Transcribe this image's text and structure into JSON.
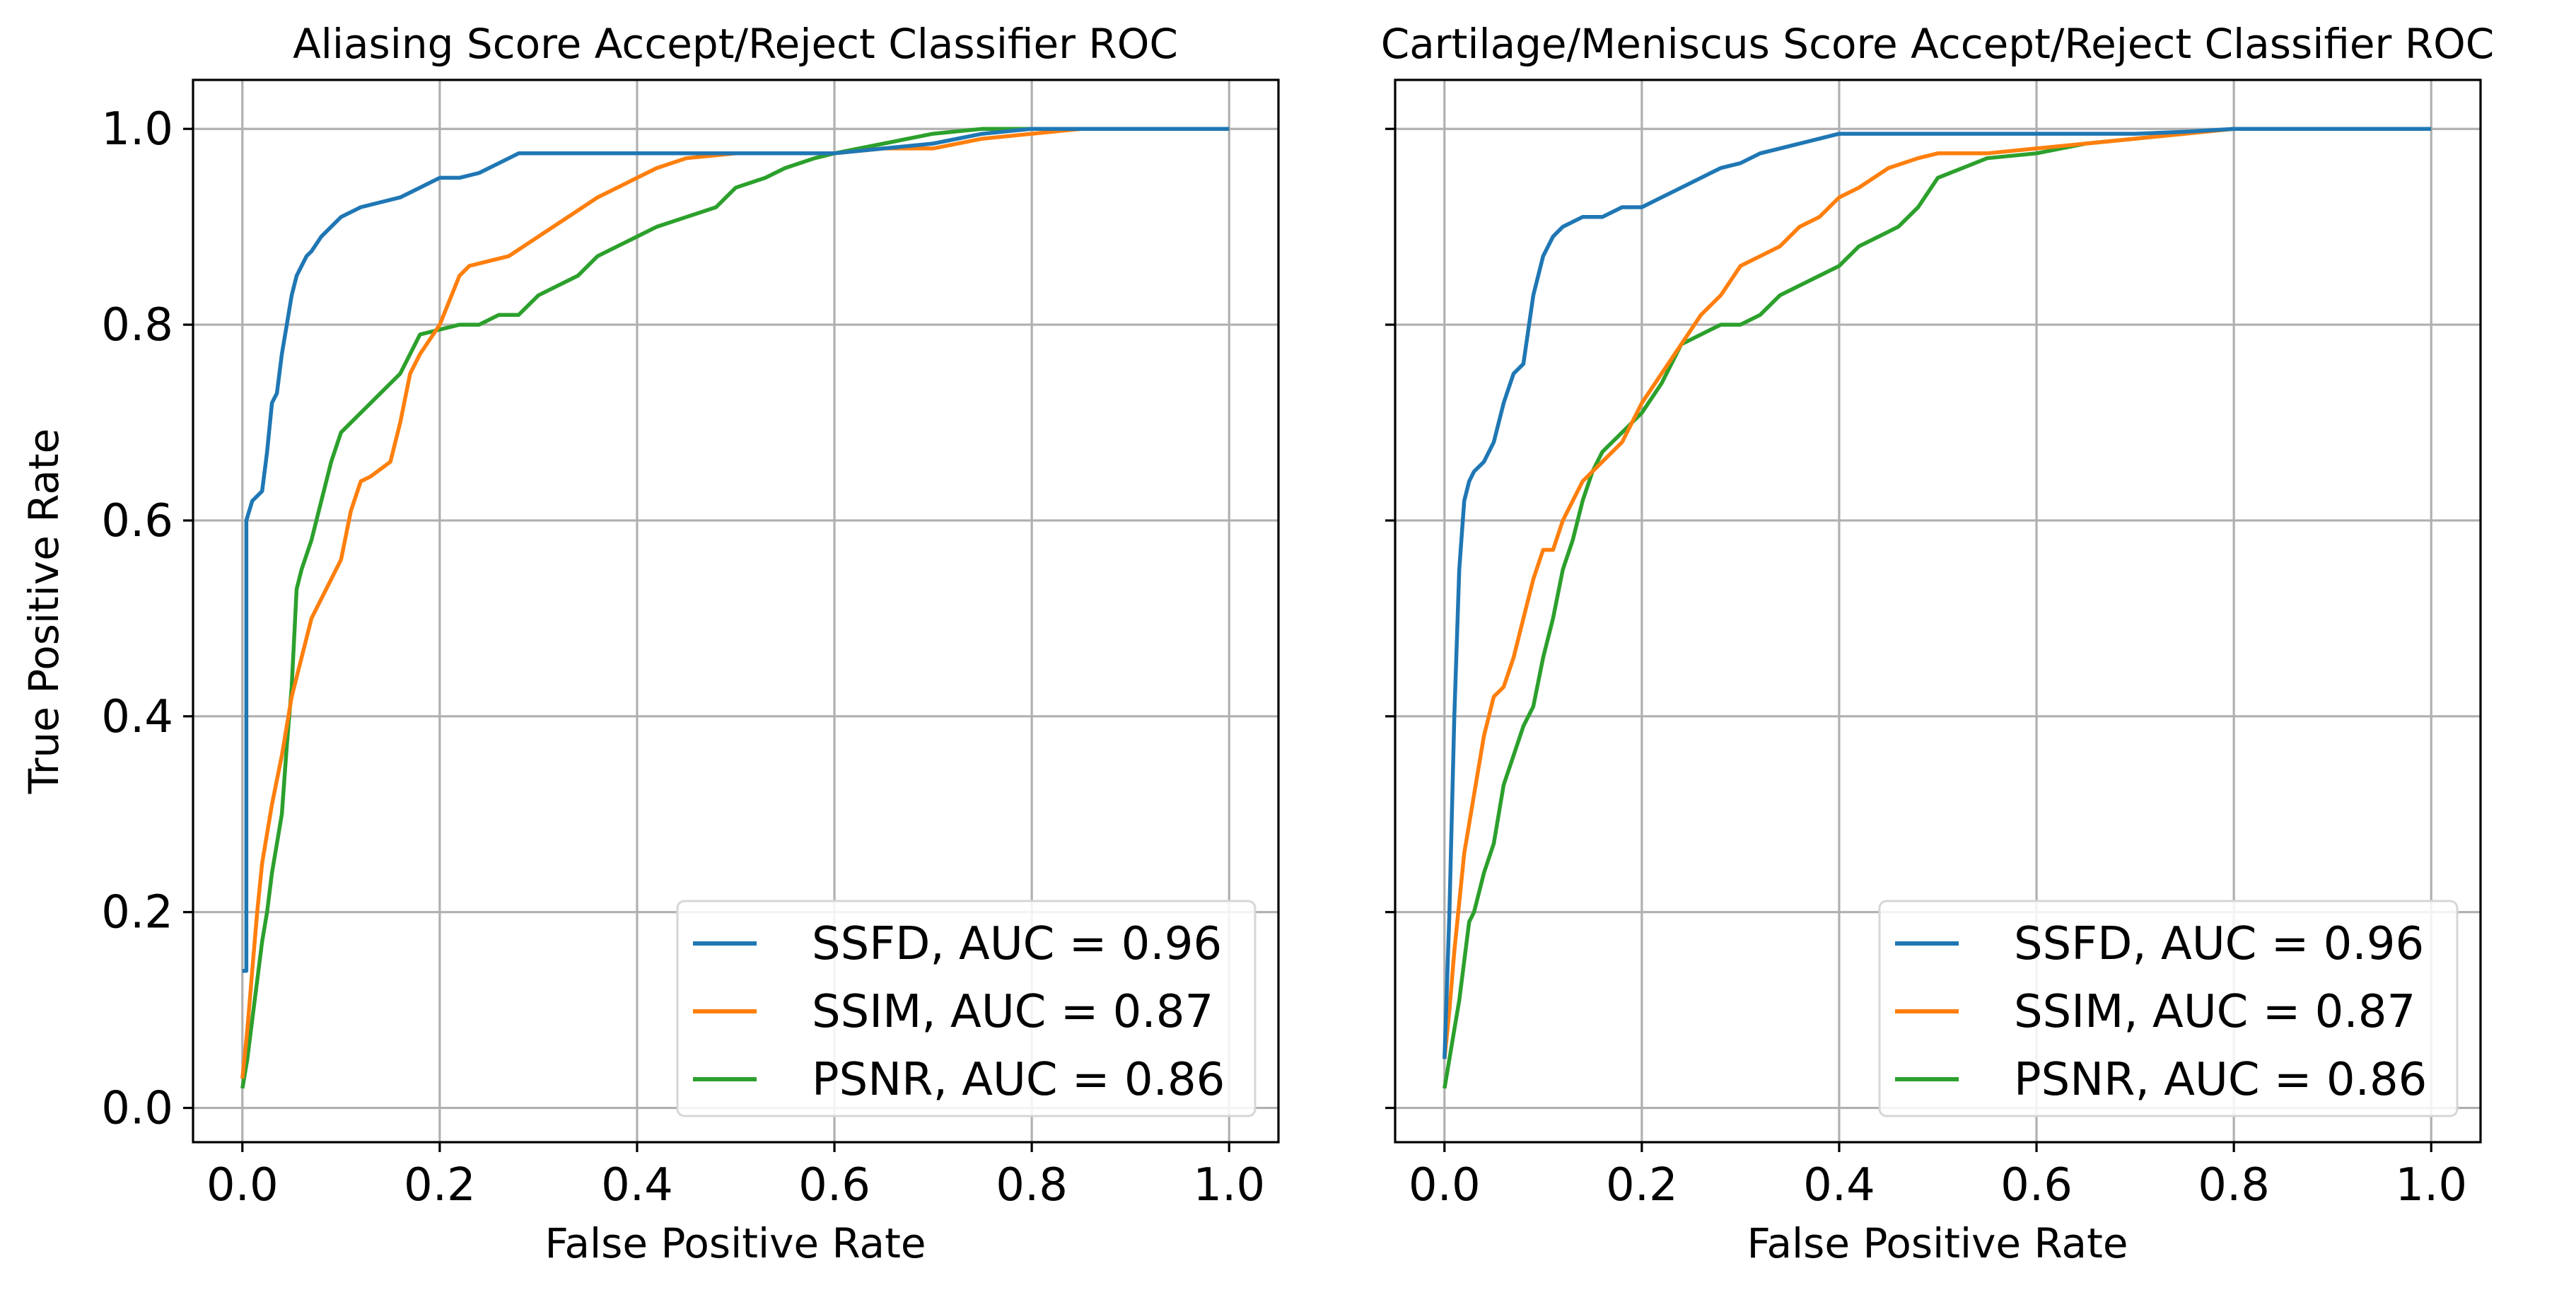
{
  "chart_data": [
    {
      "type": "line",
      "title": "Aliasing Score Accept/Reject Classifier ROC",
      "xlabel": "False Positive Rate",
      "ylabel": "True Positive Rate",
      "xlim": [
        -0.05,
        1.05
      ],
      "ylim": [
        -0.035,
        1.05
      ],
      "xticks": [
        "0.0",
        "0.2",
        "0.4",
        "0.6",
        "0.8",
        "1.0"
      ],
      "yticks": [
        "0.0",
        "0.2",
        "0.4",
        "0.6",
        "0.8",
        "1.0"
      ],
      "grid": true,
      "legend_position": "lower-right",
      "series": [
        {
          "name": "SSFD, AUC = 0.96",
          "color": "#1f77b4",
          "x": [
            0.0,
            0.0,
            0.004,
            0.004,
            0.01,
            0.02,
            0.025,
            0.03,
            0.035,
            0.04,
            0.045,
            0.05,
            0.055,
            0.06,
            0.065,
            0.07,
            0.08,
            0.09,
            0.1,
            0.12,
            0.14,
            0.16,
            0.18,
            0.2,
            0.22,
            0.24,
            0.26,
            0.28,
            0.3,
            0.35,
            0.4,
            0.5,
            0.6,
            0.65,
            0.7,
            0.75,
            0.8,
            1.0
          ],
          "y": [
            0.14,
            0.14,
            0.14,
            0.6,
            0.62,
            0.63,
            0.67,
            0.72,
            0.73,
            0.77,
            0.8,
            0.83,
            0.85,
            0.86,
            0.87,
            0.875,
            0.89,
            0.9,
            0.91,
            0.92,
            0.925,
            0.93,
            0.94,
            0.95,
            0.95,
            0.955,
            0.965,
            0.975,
            0.975,
            0.975,
            0.975,
            0.975,
            0.975,
            0.98,
            0.985,
            0.995,
            1.0,
            1.0
          ]
        },
        {
          "name": "SSIM, AUC = 0.87",
          "color": "#ff7f0e",
          "x": [
            0.0,
            0.005,
            0.01,
            0.015,
            0.02,
            0.03,
            0.04,
            0.05,
            0.06,
            0.07,
            0.08,
            0.09,
            0.1,
            0.11,
            0.12,
            0.13,
            0.15,
            0.16,
            0.17,
            0.18,
            0.2,
            0.22,
            0.23,
            0.25,
            0.27,
            0.3,
            0.33,
            0.36,
            0.38,
            0.4,
            0.42,
            0.45,
            0.5,
            0.55,
            0.6,
            0.65,
            0.7,
            0.75,
            0.8,
            0.85
          ],
          "y": [
            0.03,
            0.08,
            0.14,
            0.2,
            0.25,
            0.31,
            0.36,
            0.42,
            0.46,
            0.5,
            0.52,
            0.54,
            0.56,
            0.61,
            0.64,
            0.645,
            0.66,
            0.7,
            0.75,
            0.77,
            0.8,
            0.85,
            0.86,
            0.865,
            0.87,
            0.89,
            0.91,
            0.93,
            0.94,
            0.95,
            0.96,
            0.97,
            0.975,
            0.975,
            0.975,
            0.98,
            0.98,
            0.99,
            0.995,
            1.0
          ]
        },
        {
          "name": "PSNR, AUC = 0.86",
          "color": "#2ca02c",
          "x": [
            0.0,
            0.005,
            0.01,
            0.015,
            0.02,
            0.025,
            0.03,
            0.035,
            0.04,
            0.045,
            0.05,
            0.055,
            0.06,
            0.07,
            0.08,
            0.09,
            0.1,
            0.11,
            0.12,
            0.13,
            0.14,
            0.15,
            0.16,
            0.18,
            0.2,
            0.22,
            0.24,
            0.26,
            0.28,
            0.3,
            0.32,
            0.34,
            0.36,
            0.38,
            0.4,
            0.42,
            0.45,
            0.48,
            0.5,
            0.53,
            0.55,
            0.58,
            0.6,
            0.65,
            0.7,
            0.75,
            0.8,
            1.0
          ],
          "y": [
            0.02,
            0.05,
            0.09,
            0.13,
            0.17,
            0.2,
            0.24,
            0.27,
            0.3,
            0.37,
            0.43,
            0.53,
            0.55,
            0.58,
            0.62,
            0.66,
            0.69,
            0.7,
            0.71,
            0.72,
            0.73,
            0.74,
            0.75,
            0.79,
            0.795,
            0.8,
            0.8,
            0.81,
            0.81,
            0.83,
            0.84,
            0.85,
            0.87,
            0.88,
            0.89,
            0.9,
            0.91,
            0.92,
            0.94,
            0.95,
            0.96,
            0.97,
            0.975,
            0.985,
            0.995,
            1.0,
            1.0,
            1.0
          ]
        }
      ]
    },
    {
      "type": "line",
      "title": "Cartilage/Meniscus Score Accept/Reject Classifier ROC",
      "xlabel": "False Positive Rate",
      "ylabel": "",
      "xlim": [
        -0.05,
        1.05
      ],
      "ylim": [
        -0.035,
        1.05
      ],
      "xticks": [
        "0.0",
        "0.2",
        "0.4",
        "0.6",
        "0.8",
        "1.0"
      ],
      "yticks": [
        "0.0",
        "0.2",
        "0.4",
        "0.6",
        "0.8",
        "1.0"
      ],
      "grid": true,
      "legend_position": "lower-right",
      "series": [
        {
          "name": "SSFD, AUC = 0.96",
          "color": "#1f77b4",
          "x": [
            0.0,
            0.005,
            0.01,
            0.015,
            0.02,
            0.025,
            0.03,
            0.04,
            0.05,
            0.06,
            0.07,
            0.08,
            0.09,
            0.1,
            0.11,
            0.12,
            0.14,
            0.16,
            0.18,
            0.2,
            0.22,
            0.24,
            0.26,
            0.28,
            0.3,
            0.32,
            0.34,
            0.36,
            0.38,
            0.4,
            0.5,
            0.6,
            0.7,
            0.75,
            0.8,
            1.0
          ],
          "y": [
            0.05,
            0.2,
            0.4,
            0.55,
            0.62,
            0.64,
            0.65,
            0.66,
            0.68,
            0.72,
            0.75,
            0.76,
            0.83,
            0.87,
            0.89,
            0.9,
            0.91,
            0.91,
            0.92,
            0.92,
            0.93,
            0.94,
            0.95,
            0.96,
            0.965,
            0.975,
            0.98,
            0.985,
            0.99,
            0.995,
            0.995,
            0.995,
            0.995,
            0.997,
            1.0,
            1.0
          ]
        },
        {
          "name": "SSIM, AUC = 0.87",
          "color": "#ff7f0e",
          "x": [
            0.0,
            0.005,
            0.01,
            0.02,
            0.03,
            0.04,
            0.05,
            0.06,
            0.07,
            0.08,
            0.09,
            0.1,
            0.11,
            0.12,
            0.14,
            0.16,
            0.18,
            0.2,
            0.22,
            0.24,
            0.26,
            0.28,
            0.3,
            0.32,
            0.34,
            0.36,
            0.38,
            0.4,
            0.42,
            0.45,
            0.48,
            0.5,
            0.55,
            0.6,
            0.65,
            0.7,
            0.75,
            0.8,
            1.0
          ],
          "y": [
            0.05,
            0.1,
            0.16,
            0.26,
            0.32,
            0.38,
            0.42,
            0.43,
            0.46,
            0.5,
            0.54,
            0.57,
            0.57,
            0.6,
            0.64,
            0.66,
            0.68,
            0.72,
            0.75,
            0.78,
            0.81,
            0.83,
            0.86,
            0.87,
            0.88,
            0.9,
            0.91,
            0.93,
            0.94,
            0.96,
            0.97,
            0.975,
            0.975,
            0.98,
            0.985,
            0.99,
            0.995,
            1.0,
            1.0
          ]
        },
        {
          "name": "PSNR, AUC = 0.86",
          "color": "#2ca02c",
          "x": [
            0.0,
            0.005,
            0.01,
            0.015,
            0.02,
            0.025,
            0.03,
            0.04,
            0.05,
            0.06,
            0.07,
            0.08,
            0.09,
            0.1,
            0.11,
            0.12,
            0.13,
            0.14,
            0.15,
            0.16,
            0.18,
            0.2,
            0.22,
            0.24,
            0.26,
            0.28,
            0.3,
            0.32,
            0.34,
            0.36,
            0.38,
            0.4,
            0.42,
            0.44,
            0.46,
            0.48,
            0.5,
            0.55,
            0.6,
            0.65,
            0.7,
            0.75,
            0.8,
            1.0
          ],
          "y": [
            0.02,
            0.05,
            0.08,
            0.11,
            0.15,
            0.19,
            0.2,
            0.24,
            0.27,
            0.33,
            0.36,
            0.39,
            0.41,
            0.46,
            0.5,
            0.55,
            0.58,
            0.62,
            0.65,
            0.67,
            0.69,
            0.71,
            0.74,
            0.78,
            0.79,
            0.8,
            0.8,
            0.81,
            0.83,
            0.84,
            0.85,
            0.86,
            0.88,
            0.89,
            0.9,
            0.92,
            0.95,
            0.97,
            0.975,
            0.985,
            0.99,
            0.995,
            1.0,
            1.0
          ]
        }
      ]
    }
  ]
}
